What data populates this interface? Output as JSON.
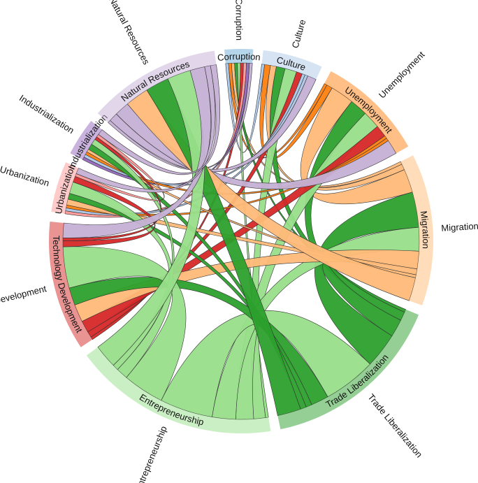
{
  "chart_data": {
    "type": "chord",
    "groups": [
      {
        "name": "Corruption",
        "color": "#6baed6"
      },
      {
        "name": "Culture",
        "color": "#aec7e8"
      },
      {
        "name": "Unemployment",
        "color": "#ff7f0e"
      },
      {
        "name": "Migration",
        "color": "#ffbb78"
      },
      {
        "name": "Trade Liberalization",
        "color": "#2ca02c"
      },
      {
        "name": "Entrepreneurship",
        "color": "#98df8a"
      },
      {
        "name": "Technology Development",
        "color": "#d62728"
      },
      {
        "name": "Urbanization",
        "color": "#ff9896"
      },
      {
        "name": "Industrialization",
        "color": "#9467bd"
      },
      {
        "name": "Natural Resources",
        "color": "#c5b0d5"
      }
    ],
    "matrix": [
      [
        0,
        1,
        1,
        1,
        1,
        1,
        1,
        1,
        1,
        1
      ],
      [
        1,
        0,
        2,
        2,
        3,
        4,
        2,
        1,
        1,
        3
      ],
      [
        1,
        2,
        0,
        8,
        6,
        6,
        4,
        1,
        1,
        5
      ],
      [
        1,
        2,
        8,
        0,
        12,
        8,
        6,
        2,
        1,
        8
      ],
      [
        1,
        3,
        6,
        12,
        0,
        18,
        6,
        2,
        2,
        8
      ],
      [
        1,
        4,
        6,
        8,
        18,
        0,
        14,
        4,
        2,
        8
      ],
      [
        1,
        2,
        4,
        6,
        6,
        14,
        0,
        2,
        1,
        5
      ],
      [
        1,
        1,
        1,
        2,
        2,
        4,
        2,
        0,
        1,
        2
      ],
      [
        1,
        1,
        1,
        1,
        2,
        2,
        1,
        1,
        0,
        2
      ],
      [
        1,
        3,
        5,
        8,
        8,
        8,
        5,
        2,
        2,
        0
      ]
    ]
  }
}
